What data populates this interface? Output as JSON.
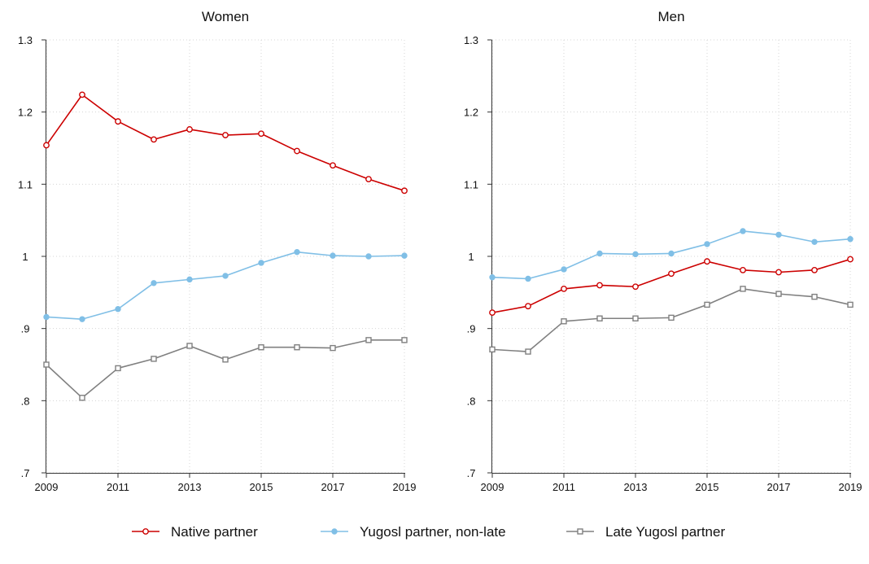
{
  "chart_data": [
    {
      "type": "line",
      "title": "Women",
      "xlabel": "",
      "ylabel": "",
      "xlim": [
        2009,
        2019
      ],
      "ylim": [
        0.7,
        1.3
      ],
      "x_ticks": [
        "2009",
        "2011",
        "2013",
        "2015",
        "2017",
        "2019"
      ],
      "y_ticks": [
        ".7",
        ".8",
        ".9",
        "1",
        "1.1",
        "1.2",
        "1.3"
      ],
      "grid": true,
      "x": [
        2009,
        2010,
        2011,
        2012,
        2013,
        2014,
        2015,
        2016,
        2017,
        2018,
        2019
      ],
      "series": [
        {
          "name": "Native partner",
          "color": "#cc0000",
          "marker": "circle-hollow",
          "values": [
            1.154,
            1.224,
            1.187,
            1.162,
            1.176,
            1.168,
            1.17,
            1.146,
            1.126,
            1.107,
            1.091
          ]
        },
        {
          "name": "Yugosl partner, non-late",
          "color": "#80bfe6",
          "marker": "circle-filled",
          "values": [
            0.916,
            0.913,
            0.927,
            0.963,
            0.968,
            0.973,
            0.991,
            1.006,
            1.001,
            1.0,
            1.001
          ]
        },
        {
          "name": "Late Yugosl partner",
          "color": "#808080",
          "marker": "square-hollow",
          "values": [
            0.85,
            0.804,
            0.845,
            0.858,
            0.876,
            0.857,
            0.874,
            0.874,
            0.873,
            0.884,
            0.884
          ]
        }
      ]
    },
    {
      "type": "line",
      "title": "Men",
      "xlabel": "",
      "ylabel": "",
      "xlim": [
        2009,
        2019
      ],
      "ylim": [
        0.7,
        1.3
      ],
      "x_ticks": [
        "2009",
        "2011",
        "2013",
        "2015",
        "2017",
        "2019"
      ],
      "y_ticks": [
        ".7",
        ".8",
        ".9",
        "1",
        "1.1",
        "1.2",
        "1.3"
      ],
      "grid": true,
      "x": [
        2009,
        2010,
        2011,
        2012,
        2013,
        2014,
        2015,
        2016,
        2017,
        2018,
        2019
      ],
      "series": [
        {
          "name": "Native partner",
          "color": "#cc0000",
          "marker": "circle-hollow",
          "values": [
            0.922,
            0.931,
            0.955,
            0.96,
            0.958,
            0.976,
            0.993,
            0.981,
            0.978,
            0.981,
            0.996
          ]
        },
        {
          "name": "Yugosl partner, non-late",
          "color": "#80bfe6",
          "marker": "circle-filled",
          "values": [
            0.971,
            0.969,
            0.982,
            1.004,
            1.003,
            1.004,
            1.017,
            1.035,
            1.03,
            1.02,
            1.024
          ]
        },
        {
          "name": "Late Yugosl partner",
          "color": "#808080",
          "marker": "square-hollow",
          "values": [
            0.871,
            0.868,
            0.91,
            0.914,
            0.914,
            0.915,
            0.933,
            0.955,
            0.948,
            0.944,
            0.933
          ]
        }
      ]
    }
  ],
  "legend": {
    "placement": "bottom",
    "entries": [
      {
        "label": "Native partner",
        "color": "#cc0000",
        "marker": "circle-hollow"
      },
      {
        "label": "Yugosl partner, non-late",
        "color": "#80bfe6",
        "marker": "circle-filled"
      },
      {
        "label": "Late Yugosl partner",
        "color": "#808080",
        "marker": "square-hollow"
      }
    ]
  }
}
